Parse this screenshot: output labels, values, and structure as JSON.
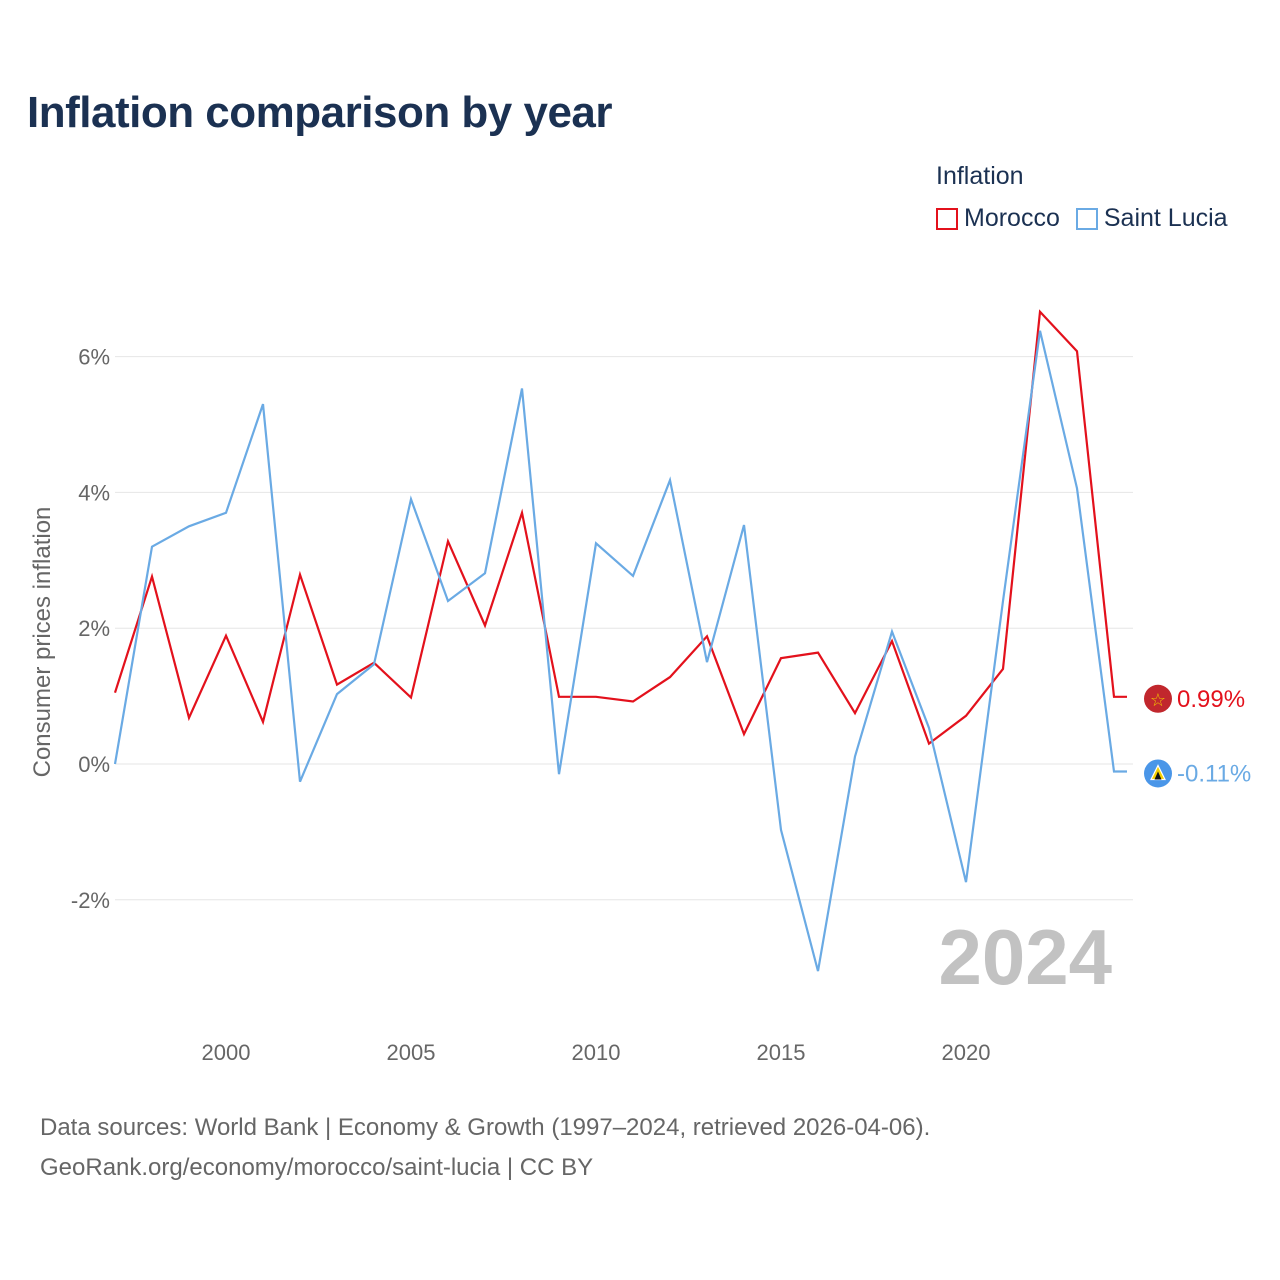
{
  "title": "Inflation comparison by year",
  "legend": {
    "title": "Inflation",
    "items": [
      {
        "name": "Morocco",
        "color": "#e3111c"
      },
      {
        "name": "Saint Lucia",
        "color": "#6aaae4"
      }
    ]
  },
  "footer": {
    "line1": "Data sources: World Bank | Economy & Growth (1997–2024, retrieved 2026-04-06).",
    "line2": "GeoRank.org/economy/morocco/saint-lucia | CC BY"
  },
  "chart_data": {
    "type": "line",
    "title": "Inflation comparison by year",
    "xlabel": "",
    "ylabel": "Consumer prices inflation",
    "x": [
      1997,
      1998,
      1999,
      2000,
      2001,
      2002,
      2003,
      2004,
      2005,
      2006,
      2007,
      2008,
      2009,
      2010,
      2011,
      2012,
      2013,
      2014,
      2015,
      2016,
      2017,
      2018,
      2019,
      2020,
      2021,
      2022,
      2023,
      2024
    ],
    "xlim": [
      1997,
      2024
    ],
    "ylim": [
      -3.3,
      7.2
    ],
    "x_ticks": [
      {
        "value": 2000,
        "label": "2000"
      },
      {
        "value": 2005,
        "label": "2005"
      },
      {
        "value": 2010,
        "label": "2010"
      },
      {
        "value": 2015,
        "label": "2015"
      },
      {
        "value": 2020,
        "label": "2020"
      }
    ],
    "y_ticks": [
      {
        "value": -2,
        "label": "-2%"
      },
      {
        "value": 0,
        "label": "0%"
      },
      {
        "value": 2,
        "label": "2%"
      },
      {
        "value": 4,
        "label": "4%"
      },
      {
        "value": 6,
        "label": "6%"
      }
    ],
    "grid": true,
    "year_label": "2024",
    "series": [
      {
        "name": "Morocco",
        "color": "#e3111c",
        "end_label": "0.99%",
        "values": [
          1.05,
          2.76,
          0.68,
          1.89,
          0.62,
          2.79,
          1.17,
          1.49,
          0.98,
          3.28,
          2.04,
          3.7,
          0.99,
          0.99,
          0.92,
          1.28,
          1.88,
          0.44,
          1.56,
          1.64,
          0.75,
          1.81,
          0.3,
          0.71,
          1.4,
          6.66,
          6.08,
          0.99
        ]
      },
      {
        "name": "Saint Lucia",
        "color": "#6aaae4",
        "end_label": "-0.11%",
        "values": [
          0.0,
          3.2,
          3.5,
          3.7,
          5.3,
          -0.26,
          1.03,
          1.47,
          3.9,
          2.4,
          2.81,
          5.53,
          -0.15,
          3.25,
          2.77,
          4.18,
          1.5,
          3.52,
          -0.97,
          -3.05,
          0.11,
          1.95,
          0.53,
          -1.74,
          2.4,
          6.38,
          4.06,
          -0.11
        ]
      }
    ]
  }
}
